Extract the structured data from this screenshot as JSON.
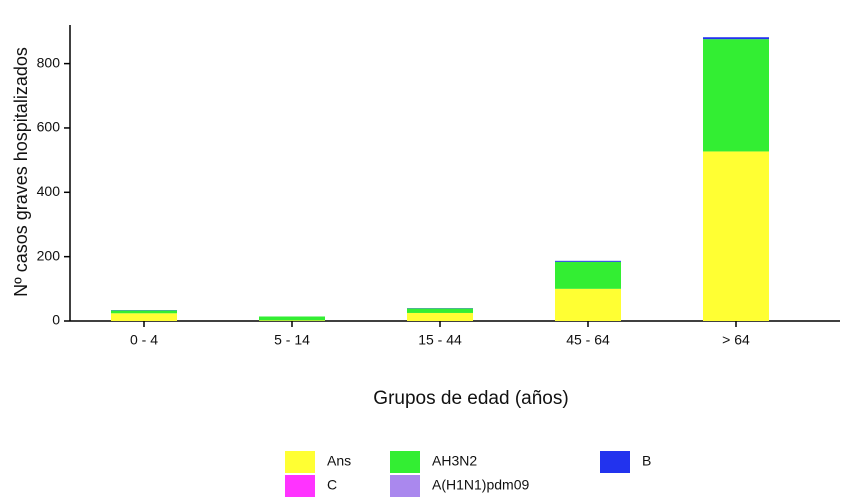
{
  "chart_data": {
    "type": "stacked-bar",
    "y_label": "Nº casos graves hospitalizados",
    "x_label": "Grupos de edad (años)",
    "categories": [
      "0 - 4",
      "5 - 14",
      "15 - 44",
      "45 - 64",
      "> 64"
    ],
    "series": [
      {
        "name": "Ans",
        "color": "#ffff33",
        "values": [
          24,
          2,
          25,
          100,
          527
        ]
      },
      {
        "name": "AH3N2",
        "color": "#33ee33",
        "values": [
          9,
          12,
          14,
          84,
          349
        ]
      },
      {
        "name": "B",
        "color": "#2233ee",
        "values": [
          1,
          0,
          1,
          3,
          6
        ]
      },
      {
        "name": "C",
        "color": "#ff33ff",
        "values": [
          0,
          0,
          0,
          0,
          0
        ]
      },
      {
        "name": "A(H1N1)pdm09",
        "color": "#aa88ee",
        "values": [
          0,
          0,
          0,
          0,
          0
        ]
      }
    ],
    "ylim": [
      0,
      920
    ],
    "yticks": [
      0,
      200,
      400,
      600,
      800
    ]
  }
}
